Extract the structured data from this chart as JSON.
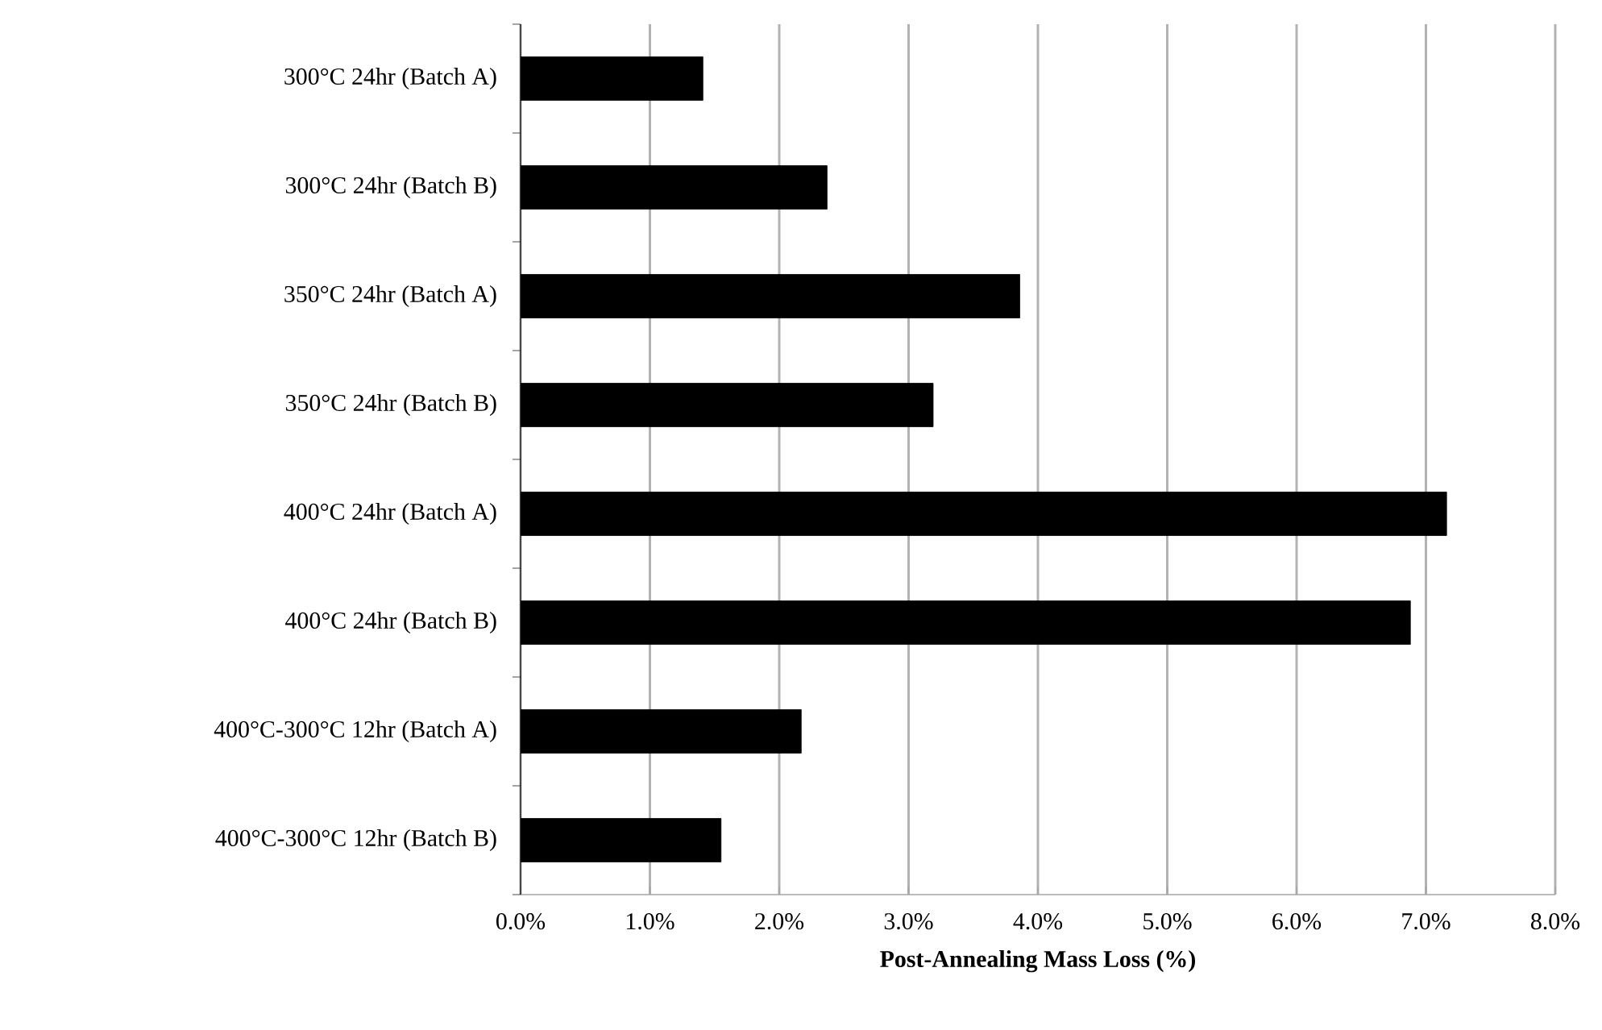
{
  "chart_data": {
    "type": "bar",
    "orientation": "horizontal",
    "xlabel": "Post-Annealing Mass Loss (%)",
    "categories": [
      "300°C 24hr (Batch A)",
      "300°C 24hr (Batch B)",
      "350°C 24hr (Batch A)",
      "350°C 24hr (Batch B)",
      "400°C 24hr (Batch A)",
      "400°C 24hr (Batch B)",
      "400°C-300°C 12hr (Batch A)",
      "400°C-300°C 12hr (Batch B)"
    ],
    "values": [
      1.41,
      2.37,
      3.86,
      3.19,
      7.16,
      6.88,
      2.17,
      1.55
    ],
    "color": "#000000",
    "xlim": [
      0,
      8
    ],
    "xticks": [
      {
        "value": 0,
        "label": "0.0%"
      },
      {
        "value": 1,
        "label": "1.0%"
      },
      {
        "value": 2,
        "label": "2.0%"
      },
      {
        "value": 3,
        "label": "3.0%"
      },
      {
        "value": 4,
        "label": "4.0%"
      },
      {
        "value": 5,
        "label": "5.0%"
      },
      {
        "value": 6,
        "label": "6.0%"
      },
      {
        "value": 7,
        "label": "7.0%"
      },
      {
        "value": 8,
        "label": "8.0%"
      }
    ],
    "grid": "x"
  }
}
